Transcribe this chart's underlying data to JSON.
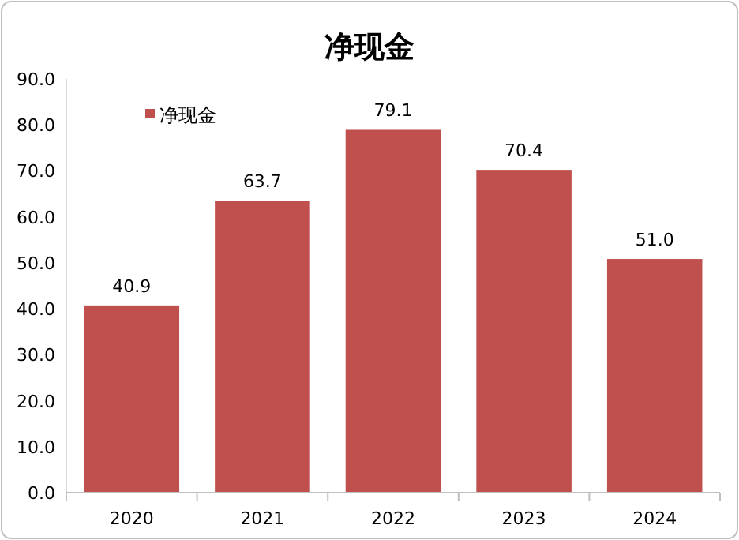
{
  "chart_data": {
    "type": "bar",
    "title": "净现金",
    "categories": [
      "2020",
      "2021",
      "2022",
      "2023",
      "2024"
    ],
    "series": [
      {
        "name": "净现金",
        "color": "#c0504d",
        "values": [
          40.9,
          63.7,
          79.1,
          70.4,
          51.0
        ],
        "value_labels": [
          "40.9",
          "63.7",
          "79.1",
          "70.4",
          "51.0"
        ]
      }
    ],
    "ylim": [
      0,
      90
    ],
    "yticks": [
      {
        "value": 0,
        "label": "0.0"
      },
      {
        "value": 10,
        "label": "10.0"
      },
      {
        "value": 20,
        "label": "20.0"
      },
      {
        "value": 30,
        "label": "30.0"
      },
      {
        "value": 40,
        "label": "40.0"
      },
      {
        "value": 50,
        "label": "50.0"
      },
      {
        "value": 60,
        "label": "60.0"
      },
      {
        "value": 70,
        "label": "70.0"
      },
      {
        "value": 80,
        "label": "80.0"
      },
      {
        "value": 90,
        "label": "90.0"
      }
    ],
    "legend": "top left",
    "grid": false
  }
}
